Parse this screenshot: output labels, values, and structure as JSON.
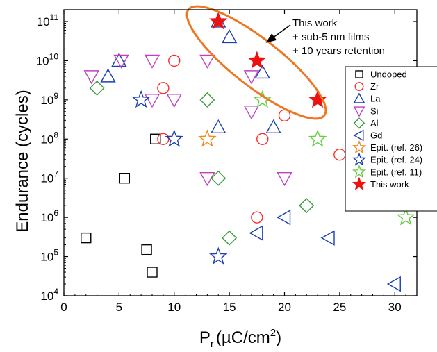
{
  "chart_data": {
    "type": "scatter",
    "x_axis": {
      "label_main": "P",
      "label_sub": "r",
      "label_unit": "(µC/cm",
      "label_sup": "2",
      "label_close": ")",
      "range": [
        0,
        32
      ],
      "ticks": [
        0,
        5,
        10,
        15,
        20,
        25,
        30
      ]
    },
    "y_axis": {
      "label": "Endurance (cycles)",
      "scale": "log",
      "range": [
        10000,
        200000000000
      ],
      "ticks": [
        {
          "value": 10000,
          "base": "10",
          "exp": "4"
        },
        {
          "value": 100000,
          "base": "10",
          "exp": "5"
        },
        {
          "value": 1000000,
          "base": "10",
          "exp": "6"
        },
        {
          "value": 10000000,
          "base": "10",
          "exp": "7"
        },
        {
          "value": 100000000,
          "base": "10",
          "exp": "8"
        },
        {
          "value": 1000000000,
          "base": "10",
          "exp": "9"
        },
        {
          "value": 10000000000,
          "base": "10",
          "exp": "10"
        },
        {
          "value": 100000000000,
          "base": "10",
          "exp": "11"
        }
      ]
    },
    "grid": false,
    "legend_position": "right",
    "annotation": {
      "lines": [
        "This work",
        "+ sub-5 nm films",
        "+ 10 years retention"
      ]
    },
    "series": [
      {
        "name": "Undoped",
        "marker": "square",
        "color": "#000000",
        "filled": false,
        "points": [
          [
            2,
            300000
          ],
          [
            5.5,
            10000000
          ],
          [
            7.5,
            150000
          ],
          [
            8,
            40000
          ],
          [
            8.3,
            100000000
          ]
        ]
      },
      {
        "name": "Zr",
        "marker": "circle",
        "color": "#ff2a2a",
        "filled": false,
        "points": [
          [
            9,
            2000000000
          ],
          [
            10,
            10000000000
          ],
          [
            9,
            100000000
          ],
          [
            17.5,
            1000000
          ],
          [
            18,
            100000000
          ],
          [
            20,
            400000000
          ],
          [
            25,
            40000000
          ]
        ]
      },
      {
        "name": "La",
        "marker": "triangle-up",
        "color": "#1a3fb0",
        "filled": false,
        "points": [
          [
            4,
            4000000000
          ],
          [
            5,
            10000000000
          ],
          [
            14,
            100000000000
          ],
          [
            15,
            40000000000
          ],
          [
            14,
            200000000
          ],
          [
            18,
            5000000000
          ],
          [
            19,
            200000000
          ]
        ]
      },
      {
        "name": "Si",
        "marker": "triangle-down",
        "color": "#c040c0",
        "filled": false,
        "points": [
          [
            2.5,
            4000000000
          ],
          [
            5.2,
            10000000000
          ],
          [
            8,
            10000000000
          ],
          [
            13,
            10000000000
          ],
          [
            8,
            1000000000
          ],
          [
            10,
            1000000000
          ],
          [
            13,
            10000000
          ],
          [
            17,
            4000000000
          ],
          [
            17,
            500000000
          ],
          [
            20,
            10000000
          ]
        ]
      },
      {
        "name": "Al",
        "marker": "diamond",
        "color": "#3a9a3a",
        "filled": false,
        "points": [
          [
            3,
            2000000000
          ],
          [
            13,
            1000000000
          ],
          [
            14,
            10000000
          ],
          [
            15,
            300000
          ],
          [
            22,
            2000000
          ]
        ]
      },
      {
        "name": "Gd",
        "marker": "triangle-left",
        "color": "#1a3fb0",
        "filled": false,
        "points": [
          [
            17.5,
            400000
          ],
          [
            20,
            1000000
          ],
          [
            24,
            300000
          ],
          [
            30,
            20000
          ]
        ]
      },
      {
        "name": "Epit. (ref. 26)",
        "marker": "star",
        "color": "#f08a1a",
        "filled": false,
        "points": [
          [
            13,
            100000000
          ]
        ]
      },
      {
        "name": "Epit. (ref. 24)",
        "marker": "star",
        "color": "#1a3fb0",
        "filled": false,
        "points": [
          [
            7,
            1000000000
          ],
          [
            10,
            100000000
          ],
          [
            14,
            100000
          ]
        ]
      },
      {
        "name": "Epit. (ref. 11)",
        "marker": "star",
        "color": "#66cc44",
        "filled": false,
        "points": [
          [
            18,
            1000000000
          ],
          [
            23,
            100000000
          ],
          [
            31,
            1000000
          ]
        ]
      },
      {
        "name": "This work",
        "marker": "star",
        "color": "#ee1111",
        "filled": true,
        "points": [
          [
            14,
            100000000000
          ],
          [
            17.5,
            10000000000
          ],
          [
            23,
            1000000000
          ]
        ]
      }
    ]
  },
  "colors": {
    "ellipse": "#ee7722",
    "axis": "#000000"
  }
}
